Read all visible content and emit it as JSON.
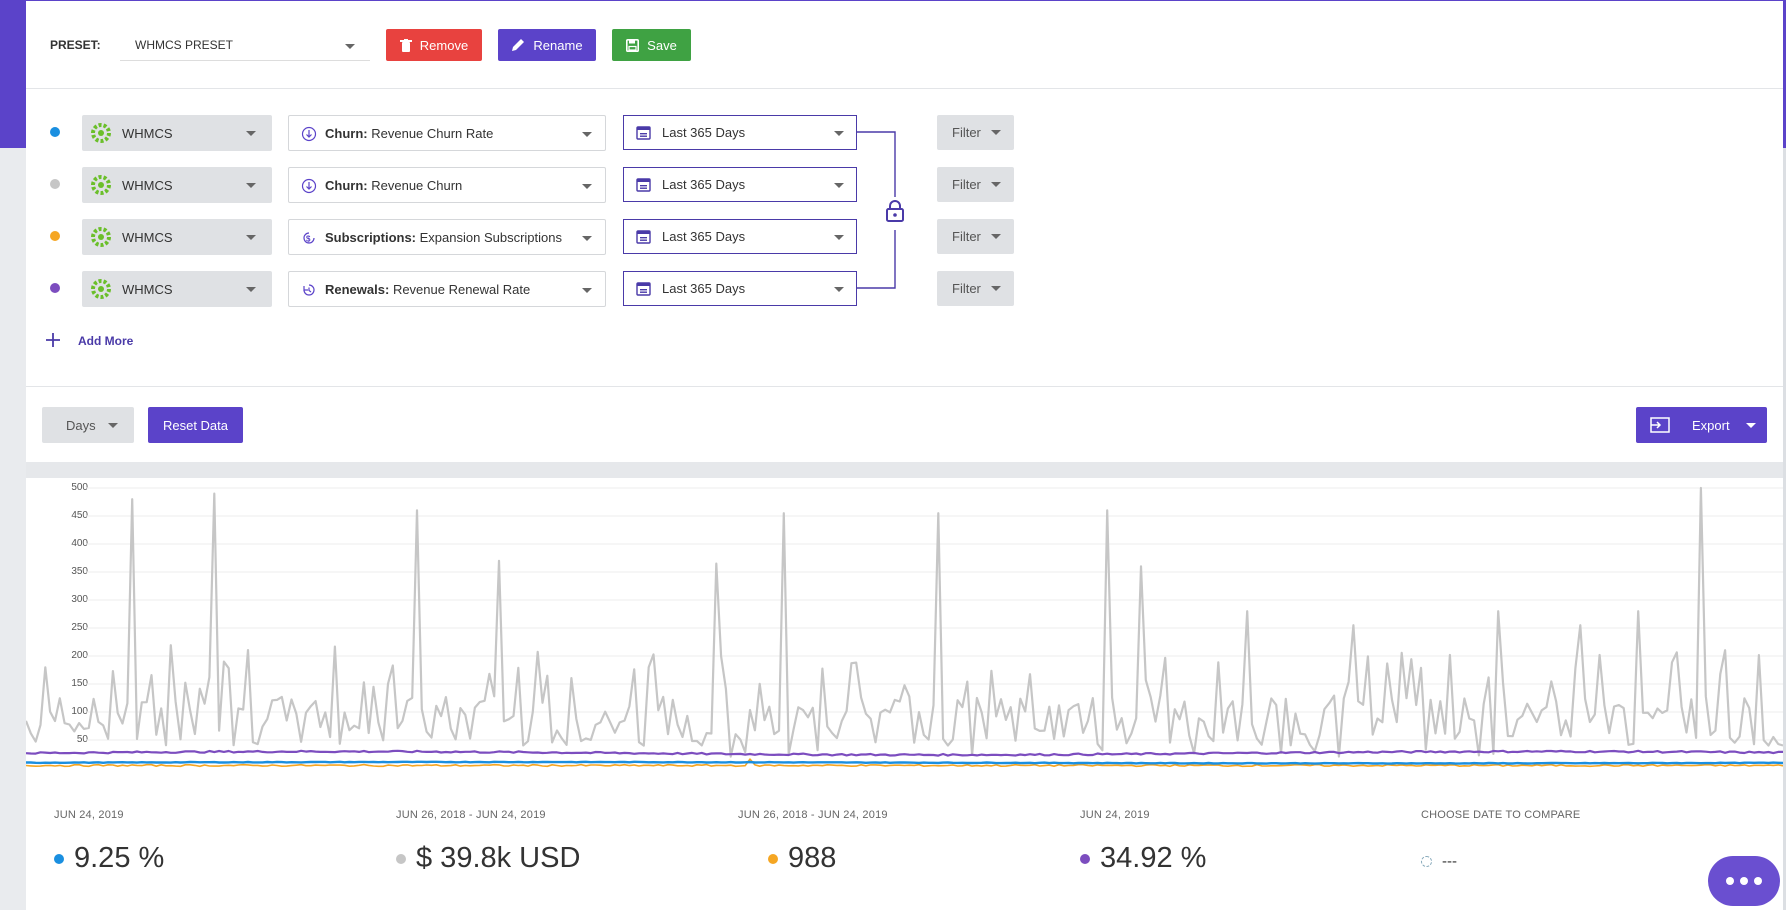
{
  "preset": {
    "label": "PRESET:",
    "value": "WHMCS PRESET"
  },
  "buttons": {
    "remove": "Remove",
    "rename": "Rename",
    "save": "Save",
    "add_more": "Add More",
    "reset": "Reset Data",
    "export": "Export"
  },
  "granularity": "Days",
  "rows": [
    {
      "color": "#1a8fe0",
      "source": "WHMCS",
      "metric_category": "Churn:",
      "metric_name": "Revenue Churn Rate",
      "metric_icon": "churn-icon",
      "date": "Last 365 Days",
      "filter": "Filter"
    },
    {
      "color": "#c6c6c6",
      "source": "WHMCS",
      "metric_category": "Churn:",
      "metric_name": "Revenue Churn",
      "metric_icon": "churn-icon",
      "date": "Last 365 Days",
      "filter": "Filter"
    },
    {
      "color": "#f5a623",
      "source": "WHMCS",
      "metric_category": "Subscriptions:",
      "metric_name": "Expansion Subscriptions",
      "metric_icon": "subscriptions-icon",
      "date": "Last 365 Days",
      "filter": "Filter"
    },
    {
      "color": "#7c4dbf",
      "source": "WHMCS",
      "metric_category": "Renewals:",
      "metric_name": "Revenue Renewal Rate",
      "metric_icon": "renewals-icon",
      "date": "Last 365 Days",
      "filter": "Filter"
    }
  ],
  "chart_data": {
    "type": "line",
    "y_ticks": [
      "500",
      "450",
      "400",
      "350",
      "300",
      "250",
      "200",
      "150",
      "100",
      "50"
    ],
    "ylim": [
      0,
      500
    ],
    "x_points": 365,
    "series": [
      {
        "color": "#c6c6c6",
        "approx_baseline": 65,
        "approx_spike_max": 500
      },
      {
        "color": "#7c4dbf",
        "approx_level": 25
      },
      {
        "color": "#1a8fe0",
        "approx_level": 9
      },
      {
        "color": "#f5a623",
        "approx_level": 3
      }
    ],
    "grid": true
  },
  "summary": [
    {
      "date": "JUN 24, 2019",
      "value": "9.25 %",
      "color": "#1a8fe0"
    },
    {
      "date": "JUN 26, 2018 - JUN 24, 2019",
      "value": "$ 39.8k USD",
      "color": "#c6c6c6"
    },
    {
      "date": "JUN 26, 2018 - JUN 24, 2019",
      "value": "988",
      "color": "#f5a623"
    },
    {
      "date": "JUN 24, 2019",
      "value": "34.92 %",
      "color": "#7c4dbf"
    },
    {
      "date": "CHOOSE DATE TO COMPARE",
      "value": "---",
      "color": "#bbbbbb"
    }
  ],
  "colors": {
    "accent": "#5b43c9",
    "remove": "#e8423f",
    "save": "#3fa243"
  }
}
